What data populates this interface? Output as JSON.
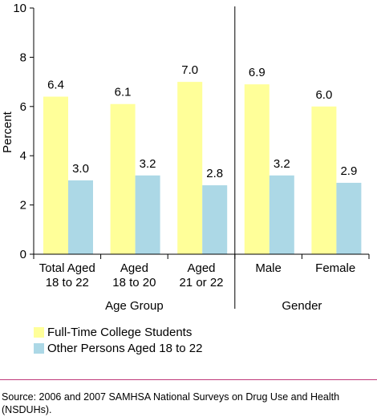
{
  "chart_data": {
    "type": "bar",
    "ylabel": "Percent",
    "ylim": [
      0,
      10
    ],
    "yticks": [
      0,
      2,
      4,
      6,
      8,
      10
    ],
    "categories": [
      [
        "Total Aged",
        "18 to 22"
      ],
      [
        "Aged",
        "18 to 20"
      ],
      [
        "Aged",
        "21 or 22"
      ],
      [
        "Male"
      ],
      [
        "Female"
      ]
    ],
    "groups": [
      {
        "label": "Age Group",
        "categories": [
          0,
          1,
          2
        ]
      },
      {
        "label": "Gender",
        "categories": [
          3,
          4
        ]
      }
    ],
    "series": [
      {
        "name": "Full-Time College Students",
        "color": "#ffff99",
        "values": [
          6.4,
          6.1,
          7.0,
          6.9,
          6.0
        ],
        "labels": [
          "6.4",
          "6.1",
          "7.0",
          "6.9",
          "6.0"
        ]
      },
      {
        "name": "Other Persons Aged 18 to 22",
        "color": "#acd8e6",
        "values": [
          3.0,
          3.2,
          2.8,
          3.2,
          2.9
        ],
        "labels": [
          "3.0",
          "3.2",
          "2.8",
          "3.2",
          "2.9"
        ]
      }
    ],
    "grid": false,
    "legend": "bottom-left"
  },
  "source": "Source: 2006 and 2007 SAMHSA National Surveys on Drug Use and Health (NSDUHs)."
}
